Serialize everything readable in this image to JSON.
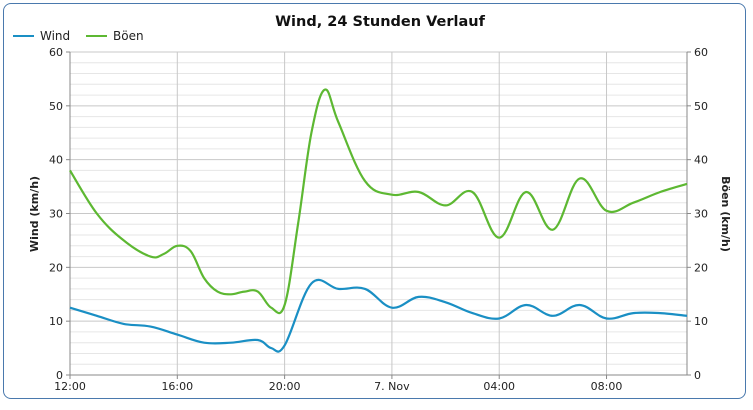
{
  "chart_data": {
    "type": "line",
    "title": "Wind, 24 Stunden Verlauf",
    "ylabel_left": "Wind (km/h)",
    "ylabel_right": "Böen (km/h)",
    "ylim": [
      0,
      60
    ],
    "y_ticks": [
      0,
      10,
      20,
      30,
      40,
      50,
      60
    ],
    "x_tick_labels": [
      "12:00",
      "16:00",
      "20:00",
      "7. Nov",
      "04:00",
      "08:00"
    ],
    "x_unit": "hours since 12:00",
    "x_range": [
      0,
      23
    ],
    "grid": true,
    "legend_position": "top-left",
    "series": [
      {
        "name": "Wind",
        "color": "#1a8fc4",
        "x": [
          0,
          1,
          2,
          3,
          4,
          5,
          6,
          7,
          7.5,
          8,
          9,
          10,
          11,
          12,
          13,
          14,
          15,
          16,
          17,
          18,
          19,
          20,
          21,
          22,
          23
        ],
        "values": [
          12.5,
          11,
          9.5,
          9,
          7.5,
          6,
          6,
          6.5,
          5,
          5.5,
          17,
          16,
          16,
          12.5,
          14.5,
          13.5,
          11.5,
          10.5,
          13,
          11,
          13,
          10.5,
          11.5,
          11.5,
          11
        ]
      },
      {
        "name": "Böen",
        "color": "#5db832",
        "x": [
          0,
          1,
          2,
          3,
          3.5,
          4,
          4.5,
          5,
          5.5,
          6,
          6.5,
          7,
          7.5,
          8,
          8.5,
          9,
          9.5,
          10,
          11,
          12,
          13,
          14,
          15,
          16,
          17,
          18,
          19,
          20,
          21,
          22,
          23
        ],
        "values": [
          38,
          30,
          25,
          22,
          22.5,
          24,
          23,
          18,
          15.5,
          15,
          15.5,
          15.5,
          12.5,
          13,
          28,
          45,
          53,
          47,
          36,
          33.5,
          34,
          31.5,
          34,
          25.5,
          34,
          27,
          36.5,
          30.5,
          32,
          34,
          35.5
        ]
      }
    ]
  }
}
